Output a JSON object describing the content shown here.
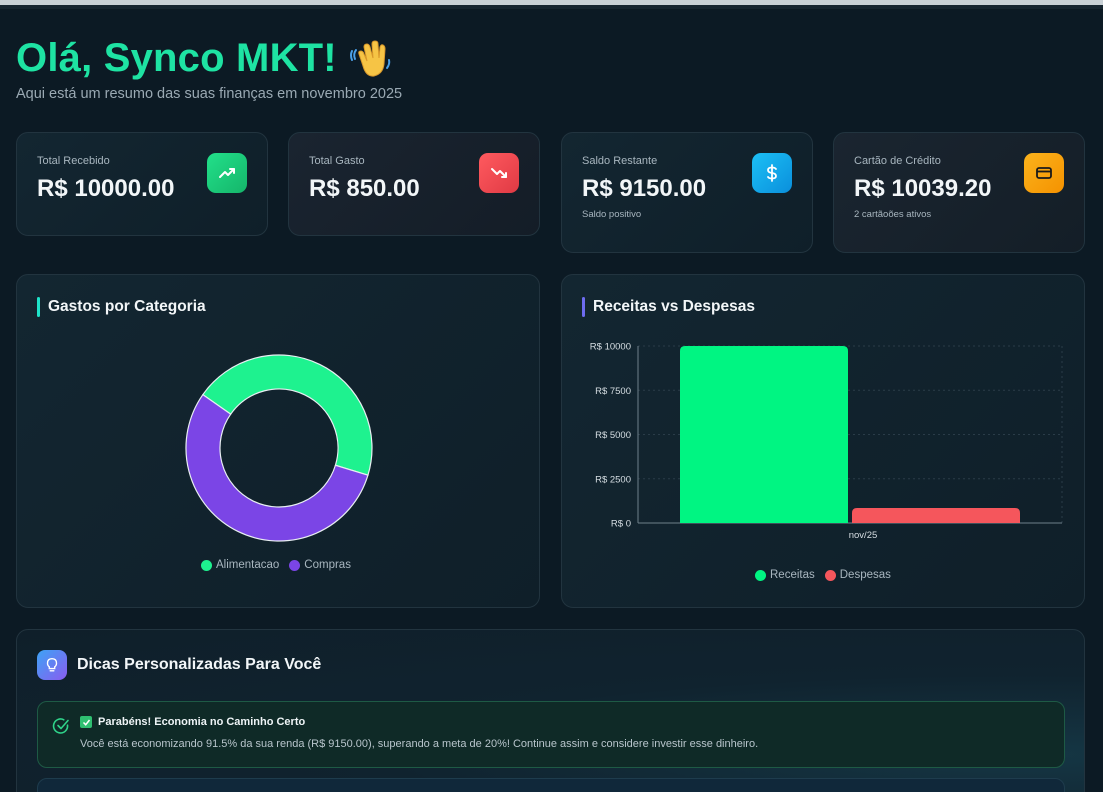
{
  "header": {
    "greeting": "Olá, Synco MKT!",
    "wave_icon": "waving-hand-icon",
    "subtitle": "Aqui está um resumo das suas finanças em novembro 2025"
  },
  "stats": [
    {
      "label": "Total Recebido",
      "value": "R$ 10000.00",
      "note": "",
      "icon": "trending-up-icon",
      "color": "#1ed67f"
    },
    {
      "label": "Total Gasto",
      "value": "R$ 850.00",
      "note": "",
      "icon": "trending-down-icon",
      "color": "#f0464f"
    },
    {
      "label": "Saldo Restante",
      "value": "R$ 9150.00",
      "note": "Saldo positivo",
      "icon": "dollar-icon",
      "color": "#12aef0"
    },
    {
      "label": "Cartão de Crédito",
      "value": "R$ 10039.20",
      "note": "2 cartãoões ativos",
      "icon": "credit-card-icon",
      "color": "#f7a50a"
    }
  ],
  "category_panel": {
    "title": "Gastos por Categoria",
    "accent": "#1ee3c9"
  },
  "revenue_panel": {
    "title": "Receitas vs Despesas",
    "accent": "#6e6cf0"
  },
  "chart_data": [
    {
      "type": "pie",
      "title": "Gastos por Categoria",
      "donut": true,
      "categories": [
        "Alimentacao",
        "Compras"
      ],
      "values": [
        45,
        55
      ],
      "colors": [
        "#1ef28f",
        "#7b45e6"
      ],
      "legend": "bottom"
    },
    {
      "type": "bar",
      "title": "Receitas vs Despesas",
      "categories": [
        "nov/25"
      ],
      "series": [
        {
          "name": "Receitas",
          "values": [
            10000
          ],
          "color": "#00f582"
        },
        {
          "name": "Despesas",
          "values": [
            850
          ],
          "color": "#f5565c"
        }
      ],
      "yticks": [
        "R$ 0",
        "R$ 2500",
        "R$ 5000",
        "R$ 7500",
        "R$ 10000"
      ],
      "ylim": [
        0,
        10000
      ],
      "grid": true,
      "legend": "bottom"
    }
  ],
  "tips": {
    "title": "Dicas Personalizadas Para Você",
    "icon": "lightbulb-icon",
    "items": [
      {
        "icon": "check-circle-icon",
        "title": "Parabéns! Economia no Caminho Certo",
        "text": "Você está economizando 91.5% da sua renda (R$ 9150.00), superando a meta de 20%! Continue assim e considere investir esse dinheiro."
      }
    ]
  }
}
